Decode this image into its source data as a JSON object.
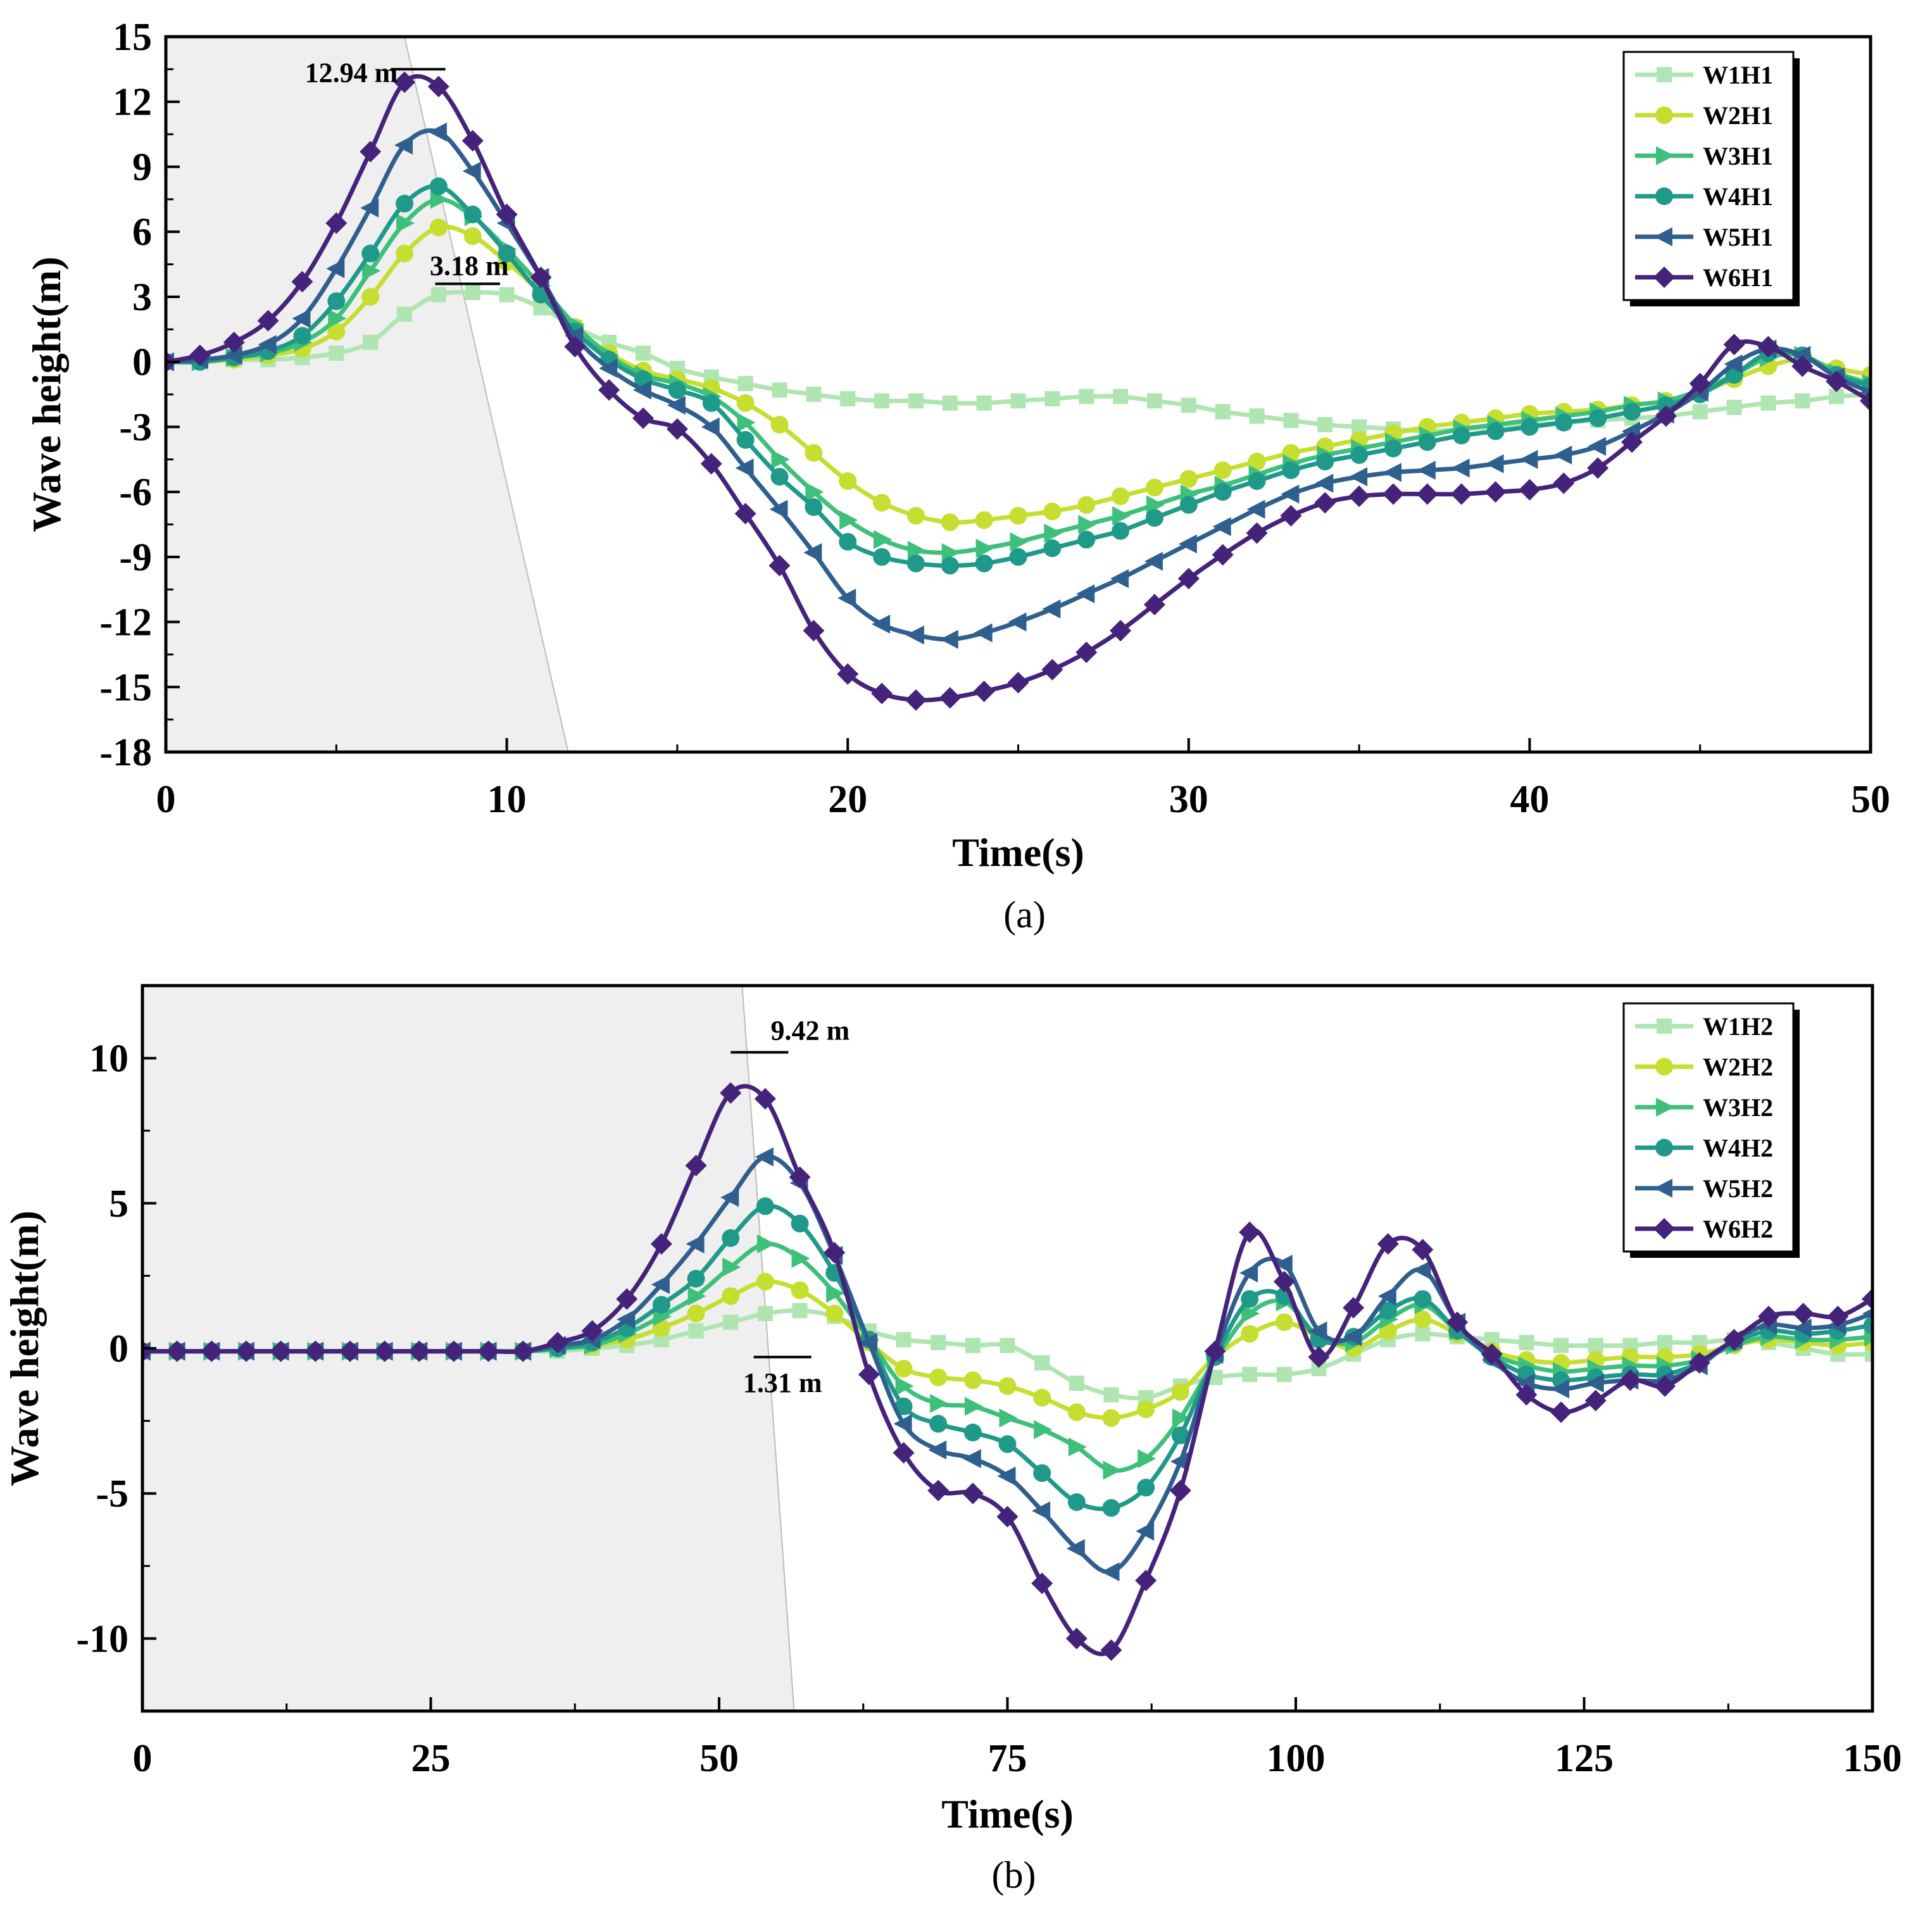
{
  "chart_data": [
    {
      "panel": "(a)",
      "type": "line",
      "xlabel": "Time(s)",
      "ylabel": "Wave height(m)",
      "xlim": [
        0,
        50
      ],
      "ylim": [
        -18,
        15
      ],
      "xticks": [
        0,
        10,
        20,
        30,
        40,
        50
      ],
      "yticks": [
        15,
        12,
        9,
        6,
        3,
        0,
        -3,
        -6,
        -9,
        -12,
        -15,
        -18
      ],
      "shaded_region": {
        "top_x": 7,
        "bottom_x": 11.8
      },
      "annotations": [
        {
          "text": "12.94 m",
          "x": 8.1,
          "y": 13.5,
          "line": [
            6.6,
            8.2
          ]
        },
        {
          "text": "3.18 m",
          "x": 8.6,
          "y": 3.6,
          "line": [
            7.9,
            9.8
          ]
        }
      ],
      "legend_position": "top-right",
      "x": [
        0,
        1,
        2,
        3,
        4,
        5,
        6,
        7,
        8,
        9,
        10,
        11,
        12,
        13,
        14,
        15,
        16,
        17,
        18,
        19,
        20,
        21,
        22,
        23,
        24,
        25,
        26,
        27,
        28,
        29,
        30,
        31,
        32,
        33,
        34,
        35,
        36,
        37,
        38,
        39,
        40,
        41,
        42,
        43,
        44,
        45,
        46,
        47,
        48,
        49,
        50
      ],
      "series": [
        {
          "name": "W1H1",
          "color": "#aee5b0",
          "marker": "square",
          "values": [
            0,
            0,
            0.1,
            0.1,
            0.2,
            0.4,
            0.9,
            2.2,
            3.1,
            3.2,
            3.1,
            2.5,
            1.6,
            0.9,
            0.4,
            -0.3,
            -0.7,
            -1.0,
            -1.3,
            -1.5,
            -1.7,
            -1.8,
            -1.8,
            -1.9,
            -1.9,
            -1.8,
            -1.7,
            -1.6,
            -1.6,
            -1.8,
            -2.0,
            -2.3,
            -2.5,
            -2.7,
            -2.9,
            -3.0,
            -3.1,
            -3.2,
            -3.1,
            -3.0,
            -2.9,
            -2.8,
            -2.7,
            -2.6,
            -2.5,
            -2.3,
            -2.1,
            -1.9,
            -1.8,
            -1.6,
            -1.5
          ]
        },
        {
          "name": "W2H1",
          "color": "#c6de2f",
          "marker": "circle",
          "values": [
            0,
            0,
            0.1,
            0.3,
            0.6,
            1.4,
            3.0,
            5.0,
            6.2,
            5.8,
            4.6,
            3.2,
            1.6,
            0.4,
            -0.4,
            -0.8,
            -1.2,
            -1.9,
            -2.9,
            -4.2,
            -5.5,
            -6.5,
            -7.1,
            -7.4,
            -7.3,
            -7.1,
            -6.9,
            -6.6,
            -6.2,
            -5.8,
            -5.4,
            -5.0,
            -4.6,
            -4.2,
            -3.9,
            -3.6,
            -3.3,
            -3.0,
            -2.8,
            -2.6,
            -2.4,
            -2.3,
            -2.2,
            -2.0,
            -1.8,
            -1.4,
            -0.8,
            -0.2,
            0.1,
            -0.3,
            -0.6
          ]
        },
        {
          "name": "W3H1",
          "color": "#3ec07a",
          "marker": "triangle-right",
          "values": [
            0,
            0,
            0.2,
            0.4,
            0.9,
            2.0,
            4.2,
            6.4,
            7.5,
            6.7,
            5.2,
            3.5,
            1.7,
            0.3,
            -0.6,
            -1.0,
            -1.6,
            -2.8,
            -4.5,
            -6.0,
            -7.3,
            -8.2,
            -8.7,
            -8.8,
            -8.6,
            -8.3,
            -7.9,
            -7.5,
            -7.1,
            -6.6,
            -6.1,
            -5.7,
            -5.2,
            -4.7,
            -4.3,
            -4.0,
            -3.7,
            -3.4,
            -3.1,
            -2.9,
            -2.7,
            -2.5,
            -2.3,
            -2.0,
            -1.8,
            -1.3,
            -0.6,
            0.2,
            0.3,
            -0.5,
            -1.0
          ]
        },
        {
          "name": "W4H1",
          "color": "#1f9a8a",
          "marker": "circle",
          "values": [
            0,
            0,
            0.2,
            0.5,
            1.2,
            2.8,
            5.0,
            7.3,
            8.1,
            6.8,
            5.0,
            3.1,
            1.4,
            0.1,
            -0.8,
            -1.3,
            -1.9,
            -3.6,
            -5.3,
            -6.7,
            -8.3,
            -9.0,
            -9.3,
            -9.4,
            -9.3,
            -9.0,
            -8.6,
            -8.2,
            -7.8,
            -7.2,
            -6.6,
            -6.0,
            -5.5,
            -5.0,
            -4.6,
            -4.3,
            -4.0,
            -3.7,
            -3.4,
            -3.2,
            -3.0,
            -2.8,
            -2.6,
            -2.3,
            -2.0,
            -1.5,
            -0.6,
            0.4,
            0.3,
            -0.6,
            -1.1
          ]
        },
        {
          "name": "W5H1",
          "color": "#2f5f8f",
          "marker": "triangle-left",
          "values": [
            0,
            0.1,
            0.3,
            0.8,
            2.0,
            4.3,
            7.1,
            10.0,
            10.6,
            8.8,
            6.4,
            3.9,
            1.2,
            -0.3,
            -1.3,
            -2.0,
            -3.0,
            -4.9,
            -6.8,
            -8.8,
            -10.9,
            -12.1,
            -12.6,
            -12.8,
            -12.5,
            -12.0,
            -11.4,
            -10.7,
            -10.0,
            -9.2,
            -8.4,
            -7.6,
            -6.8,
            -6.1,
            -5.6,
            -5.3,
            -5.1,
            -5.0,
            -4.9,
            -4.7,
            -4.5,
            -4.3,
            -3.9,
            -3.2,
            -2.4,
            -1.4,
            -0.1,
            0.6,
            0.3,
            -0.7,
            -1.4
          ]
        },
        {
          "name": "W6H1",
          "color": "#46237a",
          "marker": "diamond",
          "values": [
            0,
            0.3,
            0.9,
            1.9,
            3.7,
            6.4,
            9.7,
            12.9,
            12.7,
            10.2,
            6.8,
            3.9,
            0.7,
            -1.3,
            -2.6,
            -3.1,
            -4.7,
            -7.0,
            -9.4,
            -12.4,
            -14.4,
            -15.3,
            -15.6,
            -15.5,
            -15.2,
            -14.8,
            -14.2,
            -13.4,
            -12.4,
            -11.2,
            -10.0,
            -8.9,
            -7.9,
            -7.1,
            -6.5,
            -6.2,
            -6.1,
            -6.1,
            -6.1,
            -6.0,
            -5.9,
            -5.6,
            -4.9,
            -3.7,
            -2.5,
            -1.0,
            0.8,
            0.7,
            -0.2,
            -0.9,
            -1.8
          ]
        }
      ]
    },
    {
      "panel": "(b)",
      "type": "line",
      "xlabel": "Time(s)",
      "ylabel": "Wave height(m)",
      "xlim": [
        0,
        150
      ],
      "ylim": [
        -12.5,
        12.5
      ],
      "xticks": [
        0,
        25,
        50,
        75,
        100,
        125,
        150
      ],
      "yticks": [
        10,
        5,
        0,
        -5,
        -10
      ],
      "shaded_region": {
        "top_x": 52,
        "bottom_x": 56.5
      },
      "annotations": [
        {
          "text": "9.42 m",
          "x": 53,
          "y": 10.2,
          "line": [
            51,
            56
          ]
        },
        {
          "text": "1.31 m",
          "x": 51,
          "y": -0.3,
          "line": [
            53,
            58
          ]
        }
      ],
      "legend_position": "top-right",
      "x": [
        0,
        3,
        6,
        9,
        12,
        15,
        18,
        21,
        24,
        27,
        30,
        33,
        36,
        39,
        42,
        45,
        48,
        51,
        54,
        57,
        60,
        63,
        66,
        69,
        72,
        75,
        78,
        81,
        84,
        87,
        90,
        93,
        96,
        99,
        102,
        105,
        108,
        111,
        114,
        117,
        120,
        123,
        126,
        129,
        132,
        135,
        138,
        141,
        144,
        147,
        150
      ],
      "series": [
        {
          "name": "W1H2",
          "color": "#aee5b0",
          "marker": "square",
          "values": [
            -0.1,
            -0.1,
            -0.1,
            -0.1,
            -0.1,
            -0.1,
            -0.1,
            -0.1,
            -0.1,
            -0.1,
            -0.1,
            -0.1,
            -0.1,
            0.0,
            0.1,
            0.3,
            0.6,
            0.9,
            1.2,
            1.3,
            1.1,
            0.6,
            0.3,
            0.2,
            0.1,
            0.1,
            -0.5,
            -1.2,
            -1.6,
            -1.7,
            -1.3,
            -1.0,
            -0.9,
            -0.9,
            -0.7,
            -0.2,
            0.3,
            0.5,
            0.4,
            0.3,
            0.2,
            0.1,
            0.1,
            0.1,
            0.2,
            0.2,
            0.3,
            0.2,
            0.0,
            -0.2,
            -0.2
          ]
        },
        {
          "name": "W2H2",
          "color": "#c6de2f",
          "marker": "circle",
          "values": [
            -0.1,
            -0.1,
            -0.1,
            -0.1,
            -0.1,
            -0.1,
            -0.1,
            -0.1,
            -0.1,
            -0.1,
            -0.1,
            -0.1,
            0.0,
            0.1,
            0.3,
            0.7,
            1.2,
            1.8,
            2.3,
            2.0,
            1.2,
            0.2,
            -0.7,
            -1.0,
            -1.1,
            -1.3,
            -1.7,
            -2.2,
            -2.4,
            -2.1,
            -1.5,
            -0.3,
            0.5,
            0.9,
            0.4,
            0.0,
            0.6,
            1.0,
            0.5,
            -0.1,
            -0.4,
            -0.5,
            -0.4,
            -0.3,
            -0.3,
            -0.2,
            0.1,
            0.3,
            0.2,
            0.1,
            0.2
          ]
        },
        {
          "name": "W3H2",
          "color": "#3ec07a",
          "marker": "triangle-right",
          "values": [
            -0.1,
            -0.1,
            -0.1,
            -0.1,
            -0.1,
            -0.1,
            -0.1,
            -0.1,
            -0.1,
            -0.1,
            -0.1,
            -0.1,
            0.0,
            0.1,
            0.5,
            1.1,
            1.8,
            2.8,
            3.6,
            3.1,
            1.9,
            0.3,
            -1.3,
            -1.9,
            -2.0,
            -2.4,
            -2.8,
            -3.4,
            -4.2,
            -3.8,
            -2.4,
            -0.4,
            1.2,
            1.6,
            0.4,
            0.2,
            1.0,
            1.5,
            0.6,
            -0.2,
            -0.6,
            -0.8,
            -0.7,
            -0.6,
            -0.6,
            -0.4,
            0.1,
            0.4,
            0.3,
            0.3,
            0.4
          ]
        },
        {
          "name": "W4H2",
          "color": "#1f9a8a",
          "marker": "circle",
          "values": [
            -0.1,
            -0.1,
            -0.1,
            -0.1,
            -0.1,
            -0.1,
            -0.1,
            -0.1,
            -0.1,
            -0.1,
            -0.1,
            -0.1,
            0.0,
            0.2,
            0.7,
            1.5,
            2.4,
            3.8,
            4.9,
            4.3,
            2.6,
            0.3,
            -2.0,
            -2.6,
            -2.9,
            -3.3,
            -4.3,
            -5.3,
            -5.5,
            -4.8,
            -3.0,
            -0.3,
            1.7,
            1.8,
            0.3,
            0.4,
            1.3,
            1.7,
            0.6,
            -0.3,
            -0.9,
            -1.1,
            -1.0,
            -0.9,
            -0.9,
            -0.5,
            0.2,
            0.6,
            0.5,
            0.6,
            0.8
          ]
        },
        {
          "name": "W5H2",
          "color": "#2f5f8f",
          "marker": "triangle-left",
          "values": [
            -0.1,
            -0.1,
            -0.1,
            -0.1,
            -0.1,
            -0.1,
            -0.1,
            -0.1,
            -0.1,
            -0.1,
            -0.1,
            -0.1,
            0.1,
            0.3,
            1.0,
            2.2,
            3.6,
            5.2,
            6.6,
            5.7,
            3.2,
            0.2,
            -2.6,
            -3.5,
            -3.8,
            -4.4,
            -5.6,
            -6.9,
            -7.7,
            -6.3,
            -3.9,
            -0.2,
            2.6,
            2.9,
            0.6,
            0.4,
            1.8,
            2.7,
            0.9,
            -0.4,
            -1.2,
            -1.4,
            -1.2,
            -1.1,
            -1.1,
            -0.6,
            0.3,
            0.8,
            0.7,
            0.8,
            1.2
          ]
        },
        {
          "name": "W6H2",
          "color": "#46237a",
          "marker": "diamond",
          "values": [
            -0.1,
            -0.1,
            -0.1,
            -0.1,
            -0.1,
            -0.1,
            -0.1,
            -0.1,
            -0.1,
            -0.1,
            -0.1,
            -0.1,
            0.2,
            0.6,
            1.7,
            3.6,
            6.3,
            8.8,
            8.6,
            5.9,
            3.3,
            -0.9,
            -3.6,
            -4.9,
            -5.0,
            -5.8,
            -8.1,
            -10.0,
            -10.4,
            -8.0,
            -4.9,
            -0.1,
            4.0,
            2.3,
            -0.3,
            1.4,
            3.6,
            3.4,
            0.9,
            -0.2,
            -1.6,
            -2.2,
            -1.8,
            -1.1,
            -1.3,
            -0.5,
            0.3,
            1.1,
            1.2,
            1.1,
            1.7
          ]
        }
      ]
    }
  ]
}
